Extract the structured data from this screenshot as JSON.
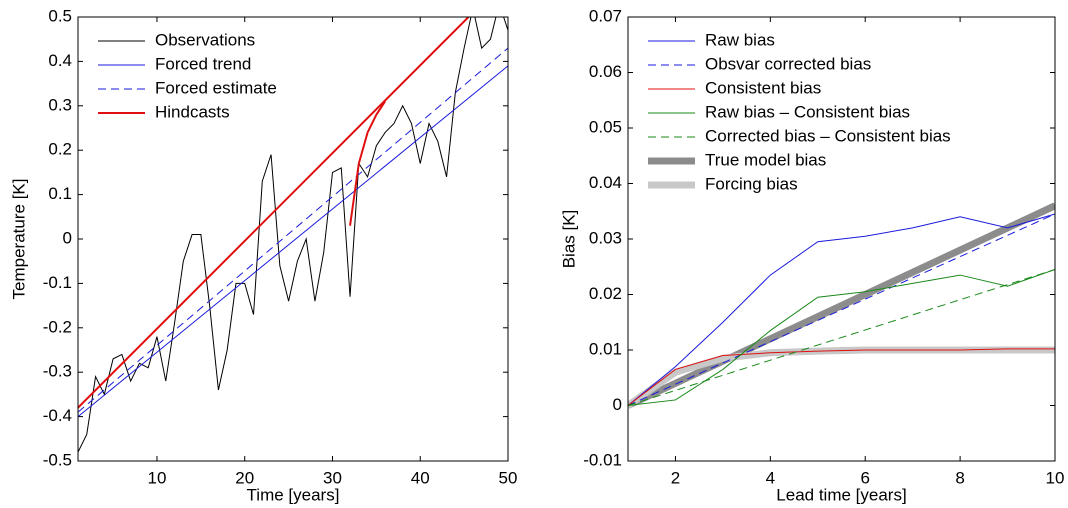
{
  "chart_data": [
    {
      "type": "line",
      "xlabel": "Time  [years]",
      "ylabel": "Temperature  [K]",
      "xlim": [
        1,
        50
      ],
      "xticks": [
        10,
        20,
        30,
        40,
        50
      ],
      "ylim": [
        -0.5,
        0.5
      ],
      "yticks": [
        -0.5,
        -0.4,
        -0.3,
        -0.2,
        -0.1,
        0,
        0.1,
        0.2,
        0.3,
        0.4,
        0.5
      ],
      "legend": "upper left",
      "series": [
        {
          "name": "Observations",
          "color": "#000000",
          "style": "solid",
          "x": [
            1,
            2,
            3,
            4,
            5,
            6,
            7,
            8,
            9,
            10,
            11,
            12,
            13,
            14,
            15,
            16,
            17,
            18,
            19,
            20,
            21,
            22,
            23,
            24,
            25,
            26,
            27,
            28,
            29,
            30,
            31,
            32,
            33,
            34,
            35,
            36,
            37,
            38,
            39,
            40,
            41,
            42,
            43,
            44,
            45,
            46,
            47,
            48,
            49,
            50
          ],
          "values": [
            -0.48,
            -0.44,
            -0.31,
            -0.35,
            -0.27,
            -0.26,
            -0.32,
            -0.28,
            -0.29,
            -0.22,
            -0.32,
            -0.19,
            -0.05,
            0.01,
            0.01,
            -0.15,
            -0.34,
            -0.25,
            -0.1,
            -0.1,
            -0.17,
            0.13,
            0.19,
            -0.06,
            -0.14,
            -0.05,
            0,
            -0.14,
            -0.03,
            0.15,
            0.16,
            -0.13,
            0.17,
            0.14,
            0.21,
            0.24,
            0.26,
            0.3,
            0.26,
            0.17,
            0.26,
            0.22,
            0.14,
            0.33,
            0.43,
            0.52,
            0.43,
            0.45,
            0.53,
            0.47
          ]
        },
        {
          "name": "Forced trend",
          "color": "#1a1adc",
          "style": "solid",
          "x": [
            1,
            50
          ],
          "values": [
            -0.4,
            0.39
          ]
        },
        {
          "name": "Forced estimate",
          "color": "#1a1adc",
          "style": "dashed",
          "x": [
            1,
            50
          ],
          "values": [
            -0.39,
            0.43
          ]
        },
        {
          "name": "Hindcasts",
          "color": "#e01010",
          "style": "bold",
          "x": [
            1,
            45.5,
            null,
            32,
            33,
            34,
            35,
            36
          ],
          "values": [
            -0.38,
            0.5,
            null,
            0.03,
            0.17,
            0.24,
            0.28,
            0.31
          ]
        }
      ]
    },
    {
      "type": "line",
      "xlabel": "Lead time  [years]",
      "ylabel": "Bias  [K]",
      "xlim": [
        1,
        10
      ],
      "xticks": [
        2,
        4,
        6,
        8,
        10
      ],
      "ylim": [
        -0.01,
        0.07
      ],
      "yticks": [
        -0.01,
        0,
        0.01,
        0.02,
        0.03,
        0.04,
        0.05,
        0.06,
        0.07
      ],
      "legend": "upper left",
      "series": [
        {
          "name": "Raw bias",
          "color": "#1a1adc",
          "style": "solid",
          "x": [
            1,
            2,
            3,
            4,
            5,
            6,
            7,
            8,
            9,
            10
          ],
          "values": [
            0,
            0.007,
            0.015,
            0.0235,
            0.0295,
            0.0305,
            0.032,
            0.034,
            0.032,
            0.0345
          ]
        },
        {
          "name": "Obsvar corrected bias",
          "color": "#1a1adc",
          "style": "dashed",
          "x": [
            1,
            10
          ],
          "values": [
            0,
            0.0345
          ]
        },
        {
          "name": "Consistent bias",
          "color": "#e01010",
          "style": "solid",
          "x": [
            1,
            2,
            3,
            4,
            5,
            6,
            7,
            8,
            9,
            10
          ],
          "values": [
            0,
            0.0065,
            0.009,
            0.0095,
            0.0098,
            0.01,
            0.01,
            0.01,
            0.0102,
            0.0102
          ]
        },
        {
          "name": "Raw bias – Consistent bias",
          "color": "#1a8a1a",
          "style": "solid",
          "x": [
            1,
            2,
            3,
            4,
            5,
            6,
            7,
            8,
            9,
            10
          ],
          "values": [
            0,
            0.001,
            0.0065,
            0.0135,
            0.0195,
            0.0205,
            0.022,
            0.0235,
            0.0215,
            0.0245
          ]
        },
        {
          "name": "Corrected bias – Consistent bias",
          "color": "#1a8a1a",
          "style": "dashed",
          "x": [
            1,
            10
          ],
          "values": [
            0,
            0.0245
          ]
        },
        {
          "name": "True model bias",
          "color": "#8c8c8c",
          "style": "thick",
          "x": [
            1,
            10
          ],
          "values": [
            0,
            0.036
          ]
        },
        {
          "name": "Forcing bias",
          "color": "#c8c8c8",
          "style": "thick",
          "x": [
            1,
            2,
            3,
            4,
            5,
            6,
            7,
            8,
            9,
            10
          ],
          "values": [
            0,
            0.006,
            0.0085,
            0.0095,
            0.0098,
            0.01,
            0.01,
            0.01,
            0.01,
            0.01
          ]
        }
      ]
    }
  ]
}
